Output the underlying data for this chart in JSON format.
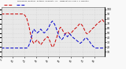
{
  "title": "Milwaukee Weather Outdoor Humidity vs. Temperature Every 5 Minutes",
  "background_color": "#f8f8f8",
  "grid_color": "#cccccc",
  "plot_bg": "#e8e8e8",
  "red_color": "#cc0000",
  "blue_color": "#0000cc",
  "ylim": [
    0,
    105
  ],
  "red_data": [
    90,
    90,
    90,
    90,
    90,
    90,
    90,
    90,
    90,
    90,
    90,
    90,
    90,
    90,
    90,
    90,
    90,
    90,
    90,
    90,
    88,
    85,
    80,
    72,
    62,
    50,
    40,
    32,
    28,
    30,
    33,
    35,
    32,
    28,
    25,
    28,
    32,
    35,
    38,
    40,
    42,
    38,
    32,
    25,
    20,
    22,
    28,
    35,
    42,
    50,
    58,
    62,
    60,
    55,
    50,
    48,
    50,
    52,
    50,
    48,
    50,
    52,
    55,
    58,
    60,
    62,
    65,
    68,
    70,
    68,
    65,
    60,
    55,
    50,
    48,
    50,
    52,
    55,
    58,
    60,
    62,
    65,
    68,
    70,
    72,
    74,
    76,
    78,
    75,
    72
  ],
  "blue_data": [
    18,
    18,
    18,
    18,
    18,
    18,
    18,
    18,
    18,
    18,
    18,
    18,
    18,
    18,
    18,
    18,
    18,
    18,
    18,
    18,
    18,
    18,
    18,
    20,
    25,
    32,
    42,
    52,
    58,
    55,
    52,
    50,
    52,
    55,
    58,
    55,
    52,
    50,
    52,
    55,
    58,
    62,
    68,
    72,
    75,
    72,
    68,
    62,
    55,
    48,
    42,
    38,
    36,
    38,
    42,
    48,
    45,
    42,
    45,
    48,
    45,
    42,
    40,
    38,
    36,
    34,
    32,
    30,
    28,
    30,
    32,
    35,
    38,
    40,
    38,
    35,
    32,
    28,
    25,
    22,
    20,
    18,
    18,
    18,
    18,
    18,
    18,
    18,
    18,
    18
  ],
  "ytick_values": [
    10,
    20,
    30,
    40,
    50,
    60,
    70,
    80,
    90,
    100
  ],
  "xtick_step": 10,
  "n_points": 90
}
